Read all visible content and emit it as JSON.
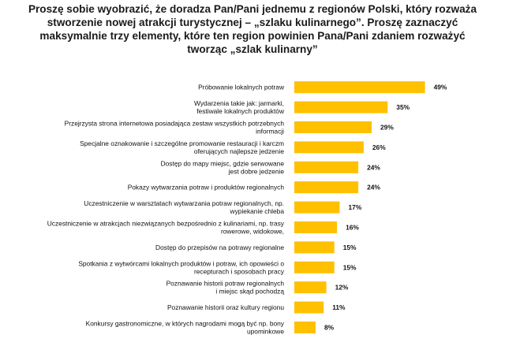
{
  "chart_data": {
    "type": "bar",
    "orientation": "horizontal",
    "title_lines": [
      "Proszę sobie wyobrazić, że doradza Pan/Pani jednemu z regionów Polski, który rozważa",
      "stworzenie nowej atrakcji turystycznej – „szlaku kulinarnego”. Proszę zaznaczyć",
      "maksymalnie trzy elementy, które ten region powinien Pana/Pani zdaniem rozważyć",
      "tworząc „szlak kulinarny”"
    ],
    "categories": [
      [
        "Próbowanie lokalnych potraw"
      ],
      [
        "Wydarzenia takie jak: jarmarki,",
        "festiwale lokalnych produktów"
      ],
      [
        "Przejrzysta strona internetowa posiadająca zestaw wszystkich potrzebnych",
        "informacji"
      ],
      [
        "Specjalne oznakowanie i szczególne promowanie restauracji i karczm",
        "oferujących najlepsze jedzenie"
      ],
      [
        "Dostęp do mapy miejsc, gdzie serwowane",
        "jest dobre jedzenie"
      ],
      [
        "Pokazy wytwarzania potraw i produktów regionalnych"
      ],
      [
        "Uczestniczenie w warsztatach wytwarzania potraw regionalnych, np.",
        "wypiekanie chleba"
      ],
      [
        "Uczestniczenie w atrakcjach niezwiązanych bezpośrednio z kulinariami, np. trasy",
        "rowerowe, widokowe,"
      ],
      [
        "Dostęp do przepisów na potrawy regionalne"
      ],
      [
        "Spotkania z wytwórcami lokalnych produktów i potraw, ich opowieści o",
        "recepturach i sposobach pracy"
      ],
      [
        "Poznawanie historii potraw regionalnych",
        "i miejsc skąd pochodzą"
      ],
      [
        "Poznawanie historii oraz kultury regionu"
      ],
      [
        "Konkursy gastronomiczne, w których nagrodami mogą być np. bony",
        "upominkowe"
      ]
    ],
    "values": [
      49,
      35,
      29,
      26,
      24,
      24,
      17,
      16,
      15,
      15,
      12,
      11,
      8
    ],
    "value_labels": [
      "49%",
      "35%",
      "29%",
      "26%",
      "24%",
      "24%",
      "17%",
      "16%",
      "15%",
      "15%",
      "12%",
      "11%",
      "8%"
    ],
    "bar_color": "#FFC000",
    "xlim": [
      0,
      55
    ],
    "grid": false,
    "legend": "none"
  }
}
